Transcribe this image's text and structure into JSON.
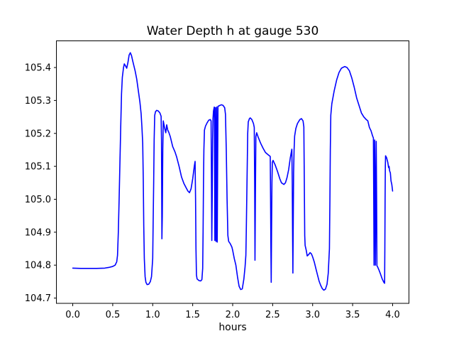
{
  "figure": {
    "title": "Water Depth h at gauge 530",
    "xlabel": "hours",
    "background": "#ffffff",
    "spine_color": "#000000",
    "line_color": "#0000ff"
  },
  "chart_data": {
    "type": "line",
    "title": "Water Depth h at gauge 530",
    "xlabel": "hours",
    "ylabel": "",
    "legend": "none",
    "grid": false,
    "xlim": [
      -0.2,
      4.2
    ],
    "ylim": [
      104.684,
      105.481
    ],
    "x_ticks": [
      0.0,
      0.5,
      1.0,
      1.5,
      2.0,
      2.5,
      3.0,
      3.5,
      4.0
    ],
    "x_tick_labels": [
      "0.0",
      "0.5",
      "1.0",
      "1.5",
      "2.0",
      "2.5",
      "3.0",
      "3.5",
      "4.0"
    ],
    "y_ticks": [
      104.7,
      104.8,
      104.9,
      105.0,
      105.1,
      105.2,
      105.3,
      105.4
    ],
    "y_tick_labels": [
      "104.7",
      "104.8",
      "104.9",
      "105.0",
      "105.1",
      "105.2",
      "105.3",
      "105.4"
    ],
    "series": [
      {
        "name": "Water Depth h",
        "color": "#0000ff",
        "line_width": 1.6,
        "points": [
          [
            0.0,
            104.791
          ],
          [
            0.1,
            104.79
          ],
          [
            0.2,
            104.79
          ],
          [
            0.3,
            104.79
          ],
          [
            0.4,
            104.791
          ],
          [
            0.45,
            104.793
          ],
          [
            0.5,
            104.796
          ],
          [
            0.53,
            104.8
          ],
          [
            0.55,
            104.81
          ],
          [
            0.56,
            104.83
          ],
          [
            0.57,
            104.9
          ],
          [
            0.58,
            105.0
          ],
          [
            0.59,
            105.11
          ],
          [
            0.6,
            105.22
          ],
          [
            0.61,
            105.32
          ],
          [
            0.62,
            105.37
          ],
          [
            0.635,
            105.4
          ],
          [
            0.645,
            105.411
          ],
          [
            0.66,
            105.405
          ],
          [
            0.675,
            105.398
          ],
          [
            0.69,
            105.415
          ],
          [
            0.705,
            105.438
          ],
          [
            0.72,
            105.445
          ],
          [
            0.735,
            105.436
          ],
          [
            0.75,
            105.42
          ],
          [
            0.78,
            105.39
          ],
          [
            0.8,
            105.365
          ],
          [
            0.82,
            105.33
          ],
          [
            0.84,
            105.295
          ],
          [
            0.855,
            105.26
          ],
          [
            0.865,
            105.22
          ],
          [
            0.875,
            105.17
          ],
          [
            0.882,
            105.06
          ],
          [
            0.888,
            104.92
          ],
          [
            0.895,
            104.82
          ],
          [
            0.905,
            104.765
          ],
          [
            0.915,
            104.748
          ],
          [
            0.93,
            104.741
          ],
          [
            0.95,
            104.742
          ],
          [
            0.97,
            104.75
          ],
          [
            0.985,
            104.765
          ],
          [
            1.0,
            104.82
          ],
          [
            1.005,
            104.92
          ],
          [
            1.012,
            105.05
          ],
          [
            1.018,
            105.18
          ],
          [
            1.025,
            105.255
          ],
          [
            1.035,
            105.266
          ],
          [
            1.05,
            105.27
          ],
          [
            1.07,
            105.268
          ],
          [
            1.09,
            105.262
          ],
          [
            1.105,
            105.252
          ],
          [
            1.11,
            105.18
          ],
          [
            1.115,
            104.88
          ],
          [
            1.12,
            104.95
          ],
          [
            1.126,
            105.15
          ],
          [
            1.132,
            105.238
          ],
          [
            1.15,
            105.215
          ],
          [
            1.163,
            105.202
          ],
          [
            1.175,
            105.226
          ],
          [
            1.188,
            105.21
          ],
          [
            1.2,
            105.204
          ],
          [
            1.22,
            105.19
          ],
          [
            1.25,
            105.16
          ],
          [
            1.28,
            105.143
          ],
          [
            1.3,
            105.128
          ],
          [
            1.33,
            105.1
          ],
          [
            1.36,
            105.068
          ],
          [
            1.39,
            105.048
          ],
          [
            1.42,
            105.034
          ],
          [
            1.44,
            105.025
          ],
          [
            1.46,
            105.02
          ],
          [
            1.48,
            105.032
          ],
          [
            1.5,
            105.062
          ],
          [
            1.52,
            105.1
          ],
          [
            1.53,
            105.115
          ],
          [
            1.536,
            105.0
          ],
          [
            1.541,
            104.85
          ],
          [
            1.547,
            104.77
          ],
          [
            1.555,
            104.758
          ],
          [
            1.58,
            104.753
          ],
          [
            1.6,
            104.752
          ],
          [
            1.615,
            104.756
          ],
          [
            1.625,
            104.79
          ],
          [
            1.63,
            104.9
          ],
          [
            1.635,
            105.05
          ],
          [
            1.64,
            105.15
          ],
          [
            1.647,
            105.21
          ],
          [
            1.66,
            105.222
          ],
          [
            1.68,
            105.232
          ],
          [
            1.7,
            105.24
          ],
          [
            1.72,
            105.242
          ],
          [
            1.73,
            105.238
          ],
          [
            1.735,
            105.05
          ],
          [
            1.739,
            104.875
          ],
          [
            1.744,
            105.0
          ],
          [
            1.749,
            105.18
          ],
          [
            1.754,
            105.245
          ],
          [
            1.76,
            105.268
          ],
          [
            1.77,
            105.28
          ],
          [
            1.774,
            105.1
          ],
          [
            1.777,
            104.875
          ],
          [
            1.781,
            105.1
          ],
          [
            1.784,
            105.278
          ],
          [
            1.789,
            105.1
          ],
          [
            1.792,
            104.872
          ],
          [
            1.796,
            105.1
          ],
          [
            1.8,
            105.28
          ],
          [
            1.804,
            105.1
          ],
          [
            1.807,
            104.87
          ],
          [
            1.812,
            105.1
          ],
          [
            1.816,
            105.282
          ],
          [
            1.84,
            105.285
          ],
          [
            1.86,
            105.287
          ],
          [
            1.88,
            105.285
          ],
          [
            1.9,
            105.278
          ],
          [
            1.91,
            105.258
          ],
          [
            1.92,
            105.15
          ],
          [
            1.93,
            105.0
          ],
          [
            1.94,
            104.89
          ],
          [
            1.95,
            104.872
          ],
          [
            1.97,
            104.865
          ],
          [
            1.99,
            104.855
          ],
          [
            2.0,
            104.845
          ],
          [
            2.02,
            104.82
          ],
          [
            2.04,
            104.8
          ],
          [
            2.06,
            104.765
          ],
          [
            2.08,
            104.736
          ],
          [
            2.1,
            104.726
          ],
          [
            2.12,
            104.728
          ],
          [
            2.14,
            104.758
          ],
          [
            2.155,
            104.795
          ],
          [
            2.165,
            104.83
          ],
          [
            2.17,
            104.9
          ],
          [
            2.176,
            105.0
          ],
          [
            2.182,
            105.1
          ],
          [
            2.188,
            105.2
          ],
          [
            2.195,
            105.235
          ],
          [
            2.21,
            105.245
          ],
          [
            2.22,
            105.247
          ],
          [
            2.24,
            105.242
          ],
          [
            2.26,
            105.23
          ],
          [
            2.27,
            105.218
          ],
          [
            2.275,
            105.05
          ],
          [
            2.279,
            104.815
          ],
          [
            2.284,
            105.0
          ],
          [
            2.29,
            105.19
          ],
          [
            2.3,
            105.202
          ],
          [
            2.32,
            105.188
          ],
          [
            2.35,
            105.17
          ],
          [
            2.38,
            105.155
          ],
          [
            2.41,
            105.142
          ],
          [
            2.44,
            105.136
          ],
          [
            2.47,
            105.13
          ],
          [
            2.474,
            105.0
          ],
          [
            2.478,
            104.85
          ],
          [
            2.482,
            104.748
          ],
          [
            2.486,
            104.9
          ],
          [
            2.491,
            105.05
          ],
          [
            2.496,
            105.112
          ],
          [
            2.505,
            105.118
          ],
          [
            2.53,
            105.105
          ],
          [
            2.56,
            105.085
          ],
          [
            2.59,
            105.062
          ],
          [
            2.61,
            105.05
          ],
          [
            2.64,
            105.045
          ],
          [
            2.66,
            105.05
          ],
          [
            2.68,
            105.066
          ],
          [
            2.7,
            105.09
          ],
          [
            2.72,
            105.125
          ],
          [
            2.74,
            105.152
          ],
          [
            2.745,
            105.05
          ],
          [
            2.749,
            104.9
          ],
          [
            2.753,
            104.776
          ],
          [
            2.758,
            104.95
          ],
          [
            2.762,
            105.08
          ],
          [
            2.768,
            105.15
          ],
          [
            2.775,
            105.192
          ],
          [
            2.79,
            105.215
          ],
          [
            2.81,
            105.23
          ],
          [
            2.84,
            105.242
          ],
          [
            2.86,
            105.245
          ],
          [
            2.88,
            105.238
          ],
          [
            2.89,
            105.22
          ],
          [
            2.896,
            105.05
          ],
          [
            2.901,
            104.89
          ],
          [
            2.906,
            104.86
          ],
          [
            2.92,
            104.845
          ],
          [
            2.932,
            104.828
          ],
          [
            2.95,
            104.832
          ],
          [
            2.968,
            104.838
          ],
          [
            2.985,
            104.834
          ],
          [
            3.0,
            104.825
          ],
          [
            3.02,
            104.81
          ],
          [
            3.04,
            104.79
          ],
          [
            3.06,
            104.771
          ],
          [
            3.08,
            104.752
          ],
          [
            3.1,
            104.739
          ],
          [
            3.12,
            104.729
          ],
          [
            3.14,
            104.724
          ],
          [
            3.16,
            104.727
          ],
          [
            3.18,
            104.742
          ],
          [
            3.195,
            104.775
          ],
          [
            3.21,
            104.85
          ],
          [
            3.216,
            105.0
          ],
          [
            3.221,
            105.15
          ],
          [
            3.227,
            105.255
          ],
          [
            3.24,
            105.29
          ],
          [
            3.27,
            105.33
          ],
          [
            3.3,
            105.362
          ],
          [
            3.33,
            105.385
          ],
          [
            3.36,
            105.398
          ],
          [
            3.4,
            105.403
          ],
          [
            3.43,
            105.4
          ],
          [
            3.46,
            105.39
          ],
          [
            3.49,
            105.368
          ],
          [
            3.52,
            105.34
          ],
          [
            3.55,
            105.308
          ],
          [
            3.58,
            105.285
          ],
          [
            3.61,
            105.262
          ],
          [
            3.64,
            105.25
          ],
          [
            3.67,
            105.242
          ],
          [
            3.69,
            105.238
          ],
          [
            3.71,
            105.218
          ],
          [
            3.73,
            105.208
          ],
          [
            3.75,
            105.192
          ],
          [
            3.76,
            105.186
          ],
          [
            3.764,
            105.0
          ],
          [
            3.768,
            104.8
          ],
          [
            3.772,
            105.0
          ],
          [
            3.776,
            105.18
          ],
          [
            3.781,
            105.0
          ],
          [
            3.785,
            104.8
          ],
          [
            3.79,
            105.0
          ],
          [
            3.795,
            105.176
          ],
          [
            3.8,
            105.0
          ],
          [
            3.804,
            104.798
          ],
          [
            3.81,
            104.796
          ],
          [
            3.83,
            104.785
          ],
          [
            3.85,
            104.772
          ],
          [
            3.87,
            104.758
          ],
          [
            3.89,
            104.748
          ],
          [
            3.9,
            104.745
          ],
          [
            3.903,
            104.85
          ],
          [
            3.906,
            105.0
          ],
          [
            3.909,
            105.1
          ],
          [
            3.912,
            105.132
          ],
          [
            3.925,
            105.126
          ],
          [
            3.94,
            105.112
          ],
          [
            3.95,
            105.096
          ],
          [
            3.956,
            105.1
          ],
          [
            3.963,
            105.086
          ],
          [
            3.972,
            105.08
          ],
          [
            3.98,
            105.056
          ],
          [
            3.99,
            105.045
          ],
          [
            4.0,
            105.025
          ]
        ]
      }
    ]
  }
}
